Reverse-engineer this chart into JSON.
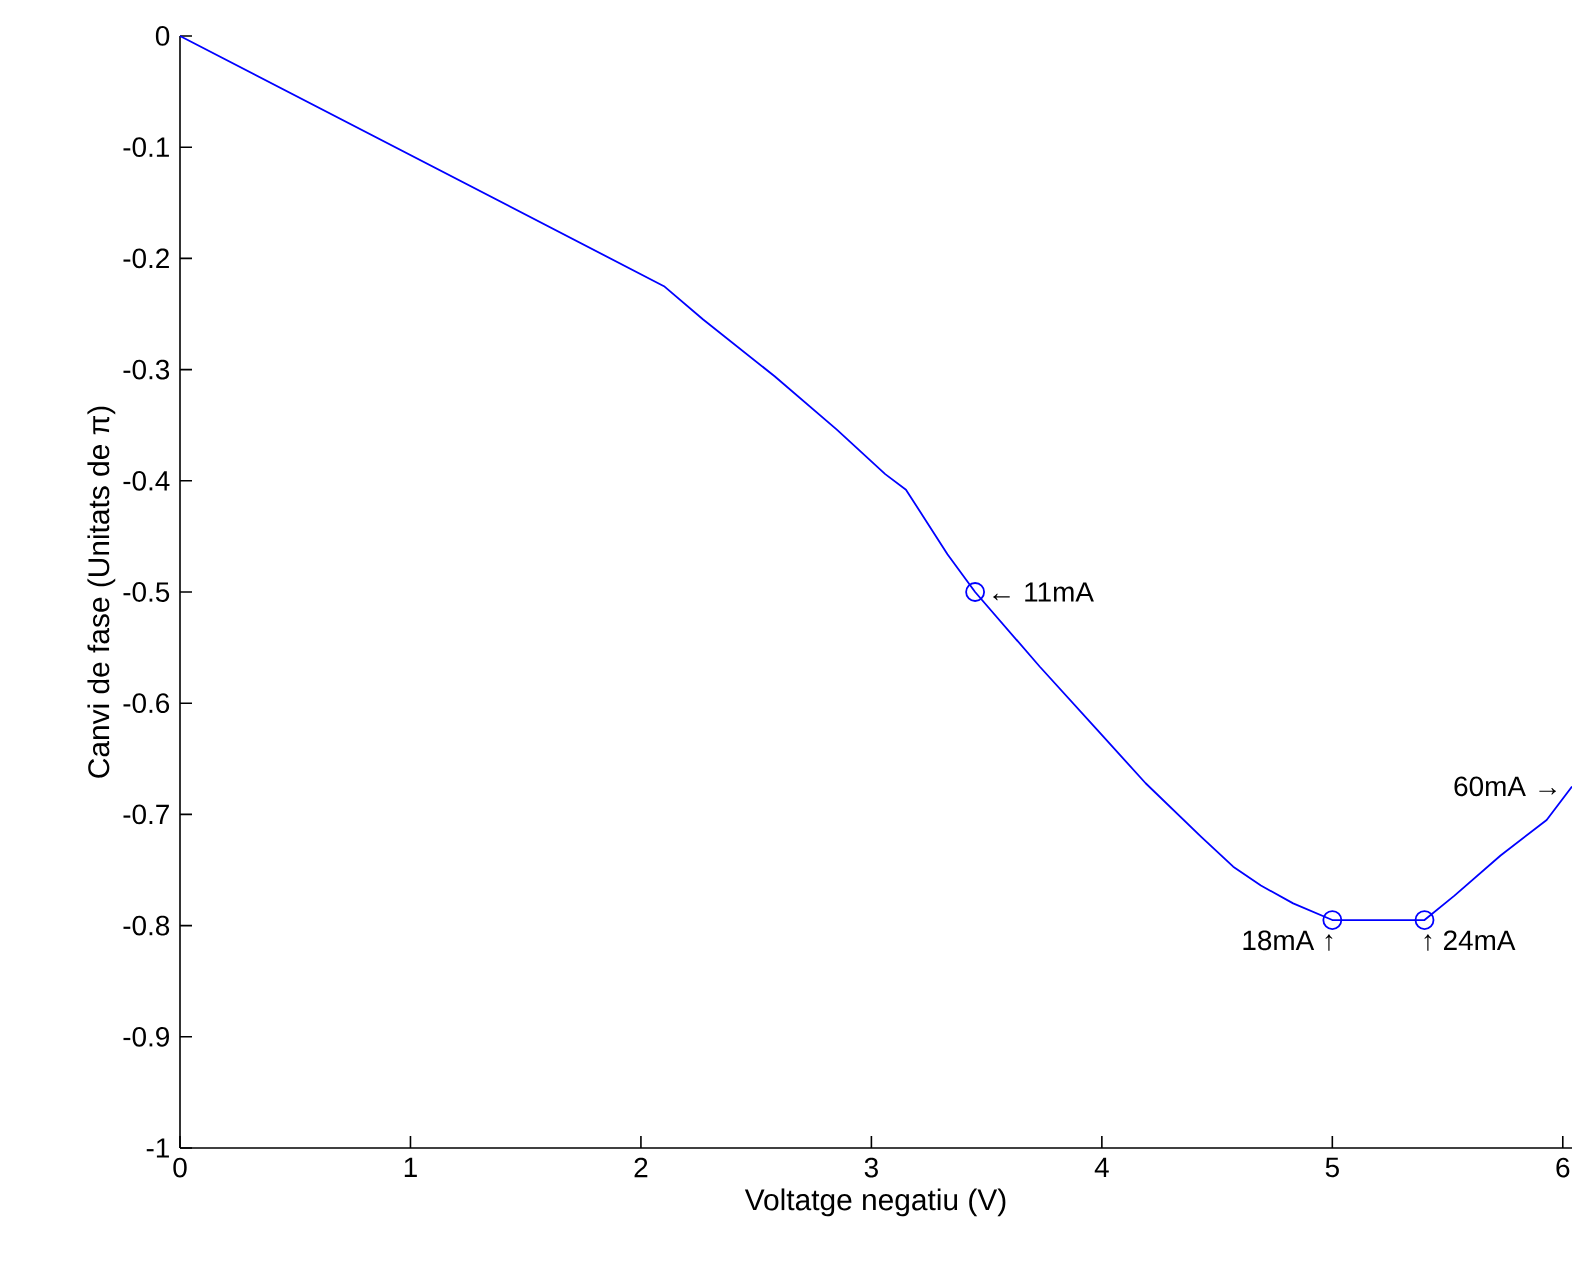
{
  "chart_data": {
    "type": "line",
    "xlabel": "Voltatge negatiu (V)",
    "ylabel": "Canvi de fase (Unitats de π)",
    "xlim": [
      0,
      6.04
    ],
    "ylim": [
      -1,
      0
    ],
    "xticks": [
      0,
      1,
      2,
      3,
      4,
      5,
      6
    ],
    "yticks": [
      -1,
      -0.9,
      -0.8,
      -0.7,
      -0.6,
      -0.5,
      -0.4,
      -0.3,
      -0.2,
      -0.1,
      0
    ],
    "grid": false,
    "series": [
      {
        "type": "line",
        "color": "#0000ff",
        "marker": "none",
        "line_style": "solid",
        "x": [
          0,
          2.1,
          2.27,
          2.58,
          2.85,
          3.06,
          3.15,
          3.33,
          3.45,
          3.73,
          3.98,
          4.19,
          4.43,
          4.57,
          4.69,
          4.83,
          5.0,
          5.4,
          5.53,
          5.73,
          5.93,
          6.04
        ],
        "values": [
          0,
          -0.225,
          -0.255,
          -0.306,
          -0.354,
          -0.394,
          -0.408,
          -0.466,
          -0.5,
          -0.567,
          -0.624,
          -0.672,
          -0.72,
          -0.747,
          -0.764,
          -0.78,
          -0.795,
          -0.795,
          -0.773,
          -0.737,
          -0.705,
          -0.675
        ]
      },
      {
        "type": "scatter",
        "color": "#0000ff",
        "marker": "circle",
        "x": [
          3.45,
          5.0,
          5.4
        ],
        "values": [
          -0.5,
          -0.795,
          -0.795
        ]
      }
    ],
    "annotations": [
      {
        "text": "← 11mA",
        "x": 3.45,
        "y": -0.5
      },
      {
        "text": "18mA ↑",
        "x": 5.0,
        "y": -0.795
      },
      {
        "text": "↑ 24mA",
        "x": 5.4,
        "y": -0.795
      },
      {
        "text": "60mA →",
        "x": 6.04,
        "y": -0.675
      }
    ]
  }
}
